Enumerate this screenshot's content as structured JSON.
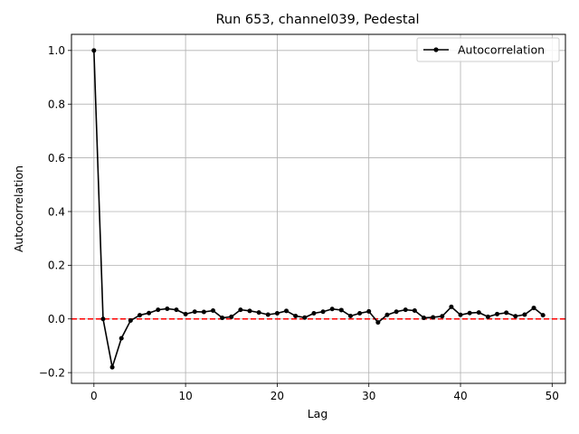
{
  "chart_data": {
    "type": "line",
    "title": "Run 653, channel039, Pedestal",
    "xlabel": "Lag",
    "ylabel": "Autocorrelation",
    "xlim": [
      -2.45,
      51.45
    ],
    "ylim": [
      -0.24,
      1.06
    ],
    "xticks": [
      0,
      10,
      20,
      30,
      40,
      50
    ],
    "xtick_labels": [
      "0",
      "10",
      "20",
      "30",
      "40",
      "50"
    ],
    "yticks": [
      -0.2,
      0.0,
      0.2,
      0.4,
      0.6,
      0.8,
      1.0
    ],
    "ytick_labels": [
      "−0.2",
      "0.0",
      "0.2",
      "0.4",
      "0.6",
      "0.8",
      "1.0"
    ],
    "grid": true,
    "legend_position": "top-right",
    "series": [
      {
        "name": "Autocorrelation",
        "color": "#000000",
        "marker": "circle",
        "x": [
          0,
          1,
          2,
          3,
          4,
          5,
          6,
          7,
          8,
          9,
          10,
          11,
          12,
          13,
          14,
          15,
          16,
          17,
          18,
          19,
          20,
          21,
          22,
          23,
          24,
          25,
          26,
          27,
          28,
          29,
          30,
          31,
          32,
          33,
          34,
          35,
          36,
          37,
          38,
          39,
          40,
          41,
          42,
          43,
          44,
          45,
          46,
          47,
          48,
          49
        ],
        "y": [
          1.0,
          0.0,
          -0.18,
          -0.072,
          -0.006,
          0.014,
          0.022,
          0.034,
          0.038,
          0.034,
          0.018,
          0.027,
          0.026,
          0.031,
          0.004,
          0.008,
          0.034,
          0.03,
          0.024,
          0.016,
          0.021,
          0.03,
          0.011,
          0.005,
          0.021,
          0.027,
          0.037,
          0.033,
          0.011,
          0.021,
          0.028,
          -0.013,
          0.015,
          0.027,
          0.034,
          0.031,
          0.004,
          0.006,
          0.01,
          0.045,
          0.015,
          0.022,
          0.024,
          0.008,
          0.018,
          0.023,
          0.01,
          0.016,
          0.041,
          0.014
        ]
      }
    ],
    "reference_line": {
      "y": 0.0,
      "color": "#ff0000",
      "style": "dashed"
    }
  }
}
